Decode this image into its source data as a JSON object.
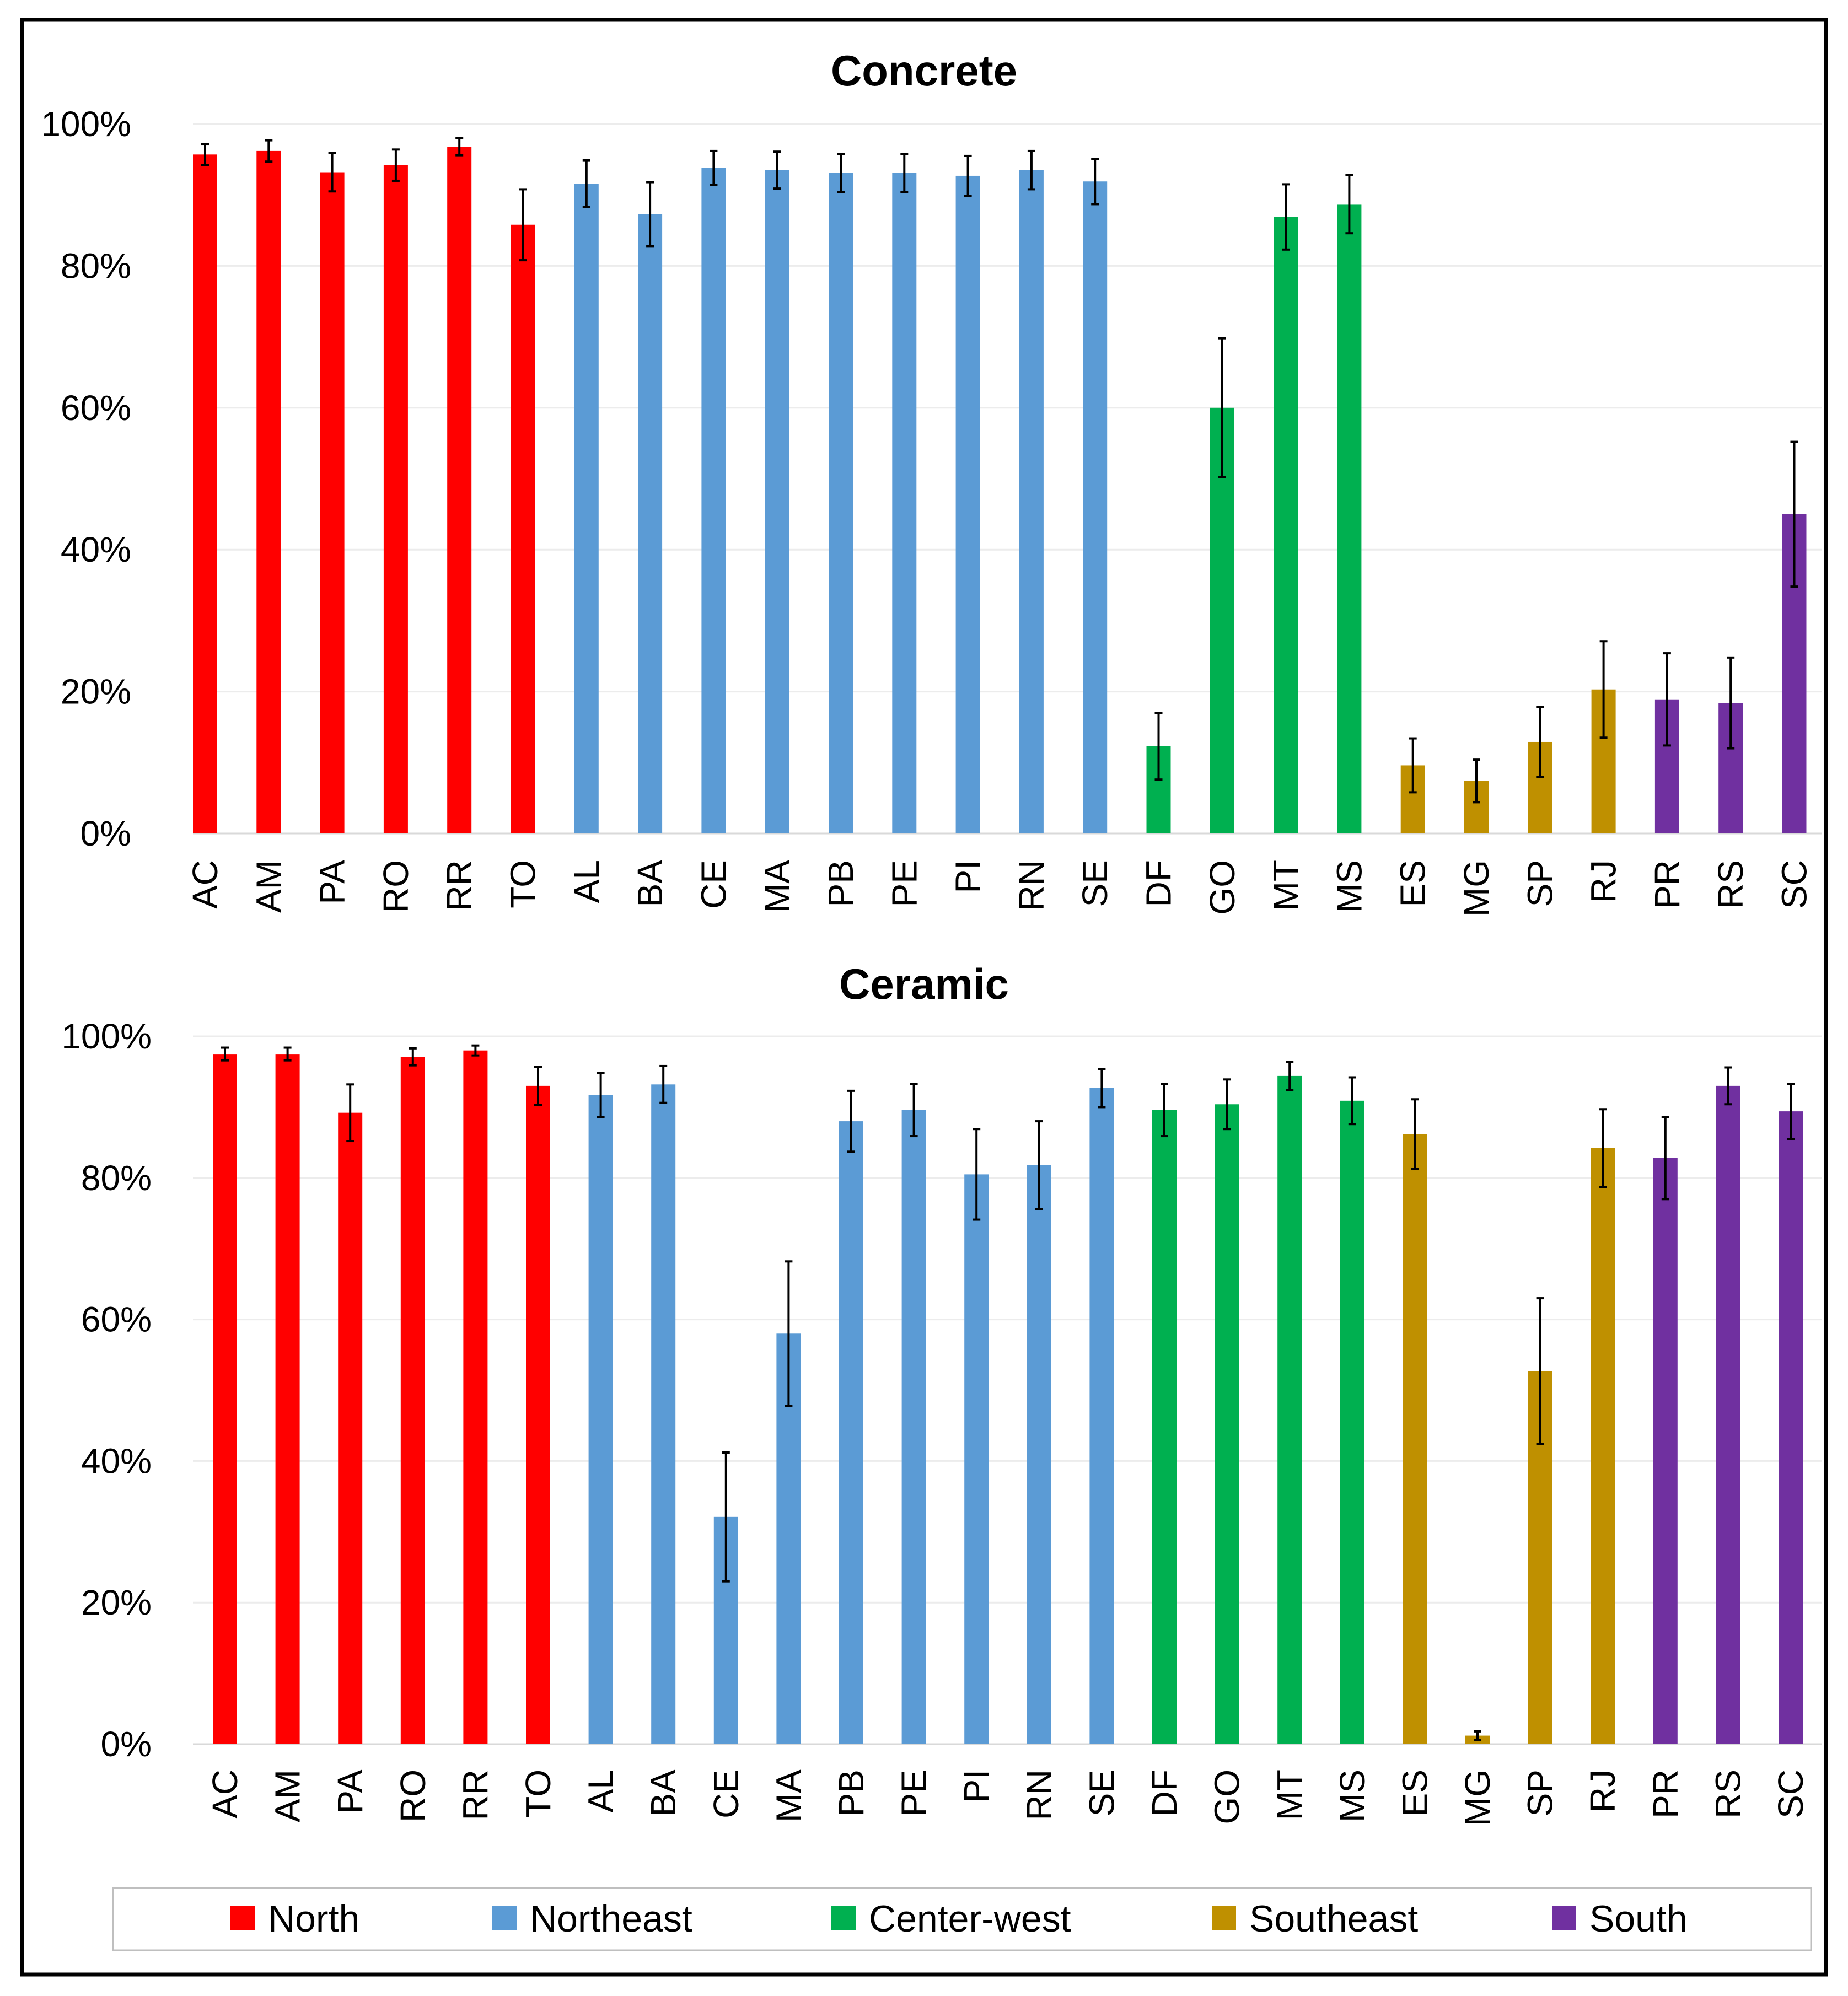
{
  "colors": {
    "North": "#ff0000",
    "Northeast": "#5b9bd5",
    "Center-west": "#00b050",
    "Southeast": "#bf9000",
    "South": "#7030a0"
  },
  "legend": [
    "North",
    "Northeast",
    "Center-west",
    "Southeast",
    "South"
  ],
  "chart_data": [
    {
      "type": "bar",
      "title": "Concrete",
      "ylim": [
        0,
        100
      ],
      "yticks": [
        "0%",
        "20%",
        "40%",
        "60%",
        "80%",
        "100%"
      ],
      "categories": [
        "AC",
        "AM",
        "PA",
        "RO",
        "RR",
        "TO",
        "AL",
        "BA",
        "CE",
        "MA",
        "PB",
        "PE",
        "PI",
        "RN",
        "SE",
        "DF",
        "GO",
        "MT",
        "MS",
        "ES",
        "MG",
        "SP",
        "RJ",
        "PR",
        "RS",
        "SC"
      ],
      "regions": [
        "North",
        "North",
        "North",
        "North",
        "North",
        "North",
        "Northeast",
        "Northeast",
        "Northeast",
        "Northeast",
        "Northeast",
        "Northeast",
        "Northeast",
        "Northeast",
        "Northeast",
        "Center-west",
        "Center-west",
        "Center-west",
        "Center-west",
        "Southeast",
        "Southeast",
        "Southeast",
        "Southeast",
        "South",
        "South",
        "South"
      ],
      "values": [
        95.7,
        96.2,
        93.2,
        94.2,
        96.8,
        85.8,
        91.6,
        87.3,
        93.8,
        93.5,
        93.1,
        93.1,
        92.7,
        93.5,
        91.9,
        12.3,
        60.0,
        86.9,
        88.7,
        9.6,
        7.4,
        12.9,
        20.3,
        18.9,
        18.4,
        45.0
      ],
      "errors": [
        1.5,
        1.5,
        2.7,
        2.2,
        1.2,
        5.0,
        3.3,
        4.5,
        2.4,
        2.6,
        2.7,
        2.7,
        2.8,
        2.7,
        3.2,
        4.7,
        9.8,
        4.6,
        4.1,
        3.8,
        3.0,
        4.9,
        6.8,
        6.5,
        6.4,
        10.2
      ]
    },
    {
      "type": "bar",
      "title": "Ceramic",
      "ylim": [
        0,
        100
      ],
      "yticks": [
        "0%",
        "20%",
        "40%",
        "60%",
        "80%",
        "100%"
      ],
      "categories": [
        "AC",
        "AM",
        "PA",
        "RO",
        "RR",
        "TO",
        "AL",
        "BA",
        "CE",
        "MA",
        "PB",
        "PE",
        "PI",
        "RN",
        "SE",
        "DF",
        "GO",
        "MT",
        "MS",
        "ES",
        "MG",
        "SP",
        "RJ",
        "PR",
        "RS",
        "SC"
      ],
      "regions": [
        "North",
        "North",
        "North",
        "North",
        "North",
        "North",
        "Northeast",
        "Northeast",
        "Northeast",
        "Northeast",
        "Northeast",
        "Northeast",
        "Northeast",
        "Northeast",
        "Northeast",
        "Center-west",
        "Center-west",
        "Center-west",
        "Center-west",
        "Southeast",
        "Southeast",
        "Southeast",
        "Southeast",
        "South",
        "South",
        "South"
      ],
      "values": [
        97.5,
        97.5,
        89.2,
        97.1,
        98.0,
        93.0,
        91.7,
        93.2,
        32.1,
        58.0,
        88.0,
        89.6,
        80.5,
        81.8,
        92.7,
        89.6,
        90.4,
        94.4,
        90.9,
        86.2,
        1.2,
        52.7,
        84.2,
        82.8,
        93.0,
        89.4
      ],
      "errors": [
        0.9,
        0.9,
        4.0,
        1.2,
        0.7,
        2.7,
        3.1,
        2.6,
        9.1,
        10.2,
        4.3,
        3.7,
        6.4,
        6.2,
        2.7,
        3.7,
        3.5,
        2.0,
        3.3,
        4.9,
        0.6,
        10.3,
        5.5,
        5.8,
        2.6,
        3.9
      ]
    }
  ]
}
